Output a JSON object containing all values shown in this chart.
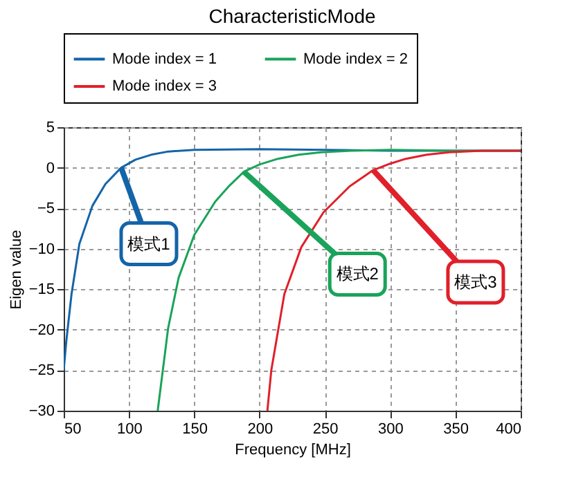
{
  "chart_data": {
    "type": "line",
    "title": "CharacteristicMode",
    "xlabel": "Frequency [MHz]",
    "ylabel": "Eigen value",
    "xlim": [
      50,
      400
    ],
    "xticks": [
      50,
      100,
      150,
      200,
      250,
      300,
      350,
      400
    ],
    "ylim": [
      -30,
      5
    ],
    "yticks": [
      -30,
      -25,
      -20,
      -15,
      -10,
      -5,
      0,
      5
    ],
    "grid": true,
    "legend": "top",
    "marker": "none",
    "line_style": "solid",
    "series": [
      {
        "name": "Mode index = 1",
        "color": "#1464a8",
        "x": [
          50,
          52,
          56,
          62,
          72,
          82,
          94,
          105,
          117,
          130,
          150,
          200,
          250,
          300,
          350,
          400
        ],
        "values": [
          -25,
          -21.4,
          -15.6,
          -9.4,
          -4.7,
          -2,
          0,
          1,
          1.6,
          2,
          2.2,
          2.3,
          2.2,
          2.1,
          2.1,
          2.1
        ]
      },
      {
        "name": "Mode index = 2",
        "color": "#1aa35a",
        "x": [
          122,
          130,
          138,
          150,
          166,
          177,
          188,
          200,
          214,
          230,
          247,
          270,
          300,
          350,
          400
        ],
        "values": [
          -30,
          -19.8,
          -13.6,
          -8.3,
          -4.2,
          -2.2,
          -0.5,
          0.4,
          1.1,
          1.6,
          1.9,
          2.1,
          2.2,
          2.1,
          2.1
        ],
        "type": "line"
      },
      {
        "name": "Mode index = 3",
        "color": "#e0202a",
        "x": [
          206,
          209,
          219,
          232,
          249,
          269,
          287,
          300,
          312,
          328,
          345,
          370,
          400
        ],
        "values": [
          -30,
          -25,
          -15.6,
          -9.8,
          -5.5,
          -2.3,
          -0.3,
          0.5,
          1.1,
          1.6,
          1.9,
          2.1,
          2.1
        ]
      }
    ],
    "annotations": [
      {
        "text": "模式1",
        "x": 94,
        "y": 0
      },
      {
        "text": "模式2",
        "x": 188,
        "y": -0.5
      },
      {
        "text": "模式3",
        "x": 287,
        "y": -0.3
      }
    ]
  }
}
